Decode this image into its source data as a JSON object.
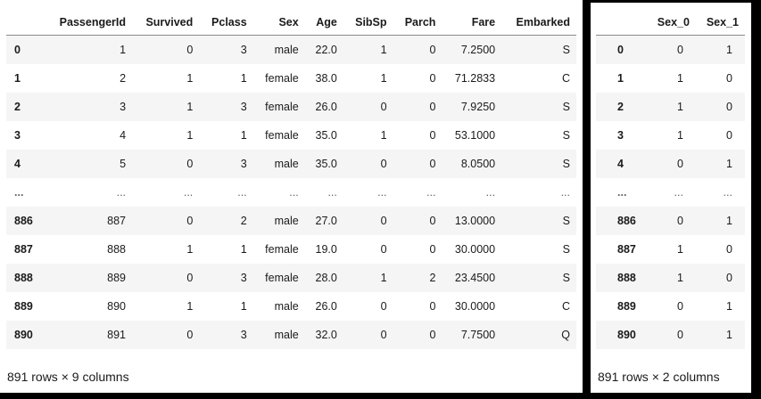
{
  "left_table": {
    "columns": [
      "",
      "PassengerId",
      "Survived",
      "Pclass",
      "Sex",
      "Age",
      "SibSp",
      "Parch",
      "Fare",
      "Embarked"
    ],
    "rows": [
      [
        "0",
        "1",
        "0",
        "3",
        "male",
        "22.0",
        "1",
        "0",
        "7.2500",
        "S"
      ],
      [
        "1",
        "2",
        "1",
        "1",
        "female",
        "38.0",
        "1",
        "0",
        "71.2833",
        "C"
      ],
      [
        "2",
        "3",
        "1",
        "3",
        "female",
        "26.0",
        "0",
        "0",
        "7.9250",
        "S"
      ],
      [
        "3",
        "4",
        "1",
        "1",
        "female",
        "35.0",
        "1",
        "0",
        "53.1000",
        "S"
      ],
      [
        "4",
        "5",
        "0",
        "3",
        "male",
        "35.0",
        "0",
        "0",
        "8.0500",
        "S"
      ],
      [
        "...",
        "...",
        "...",
        "...",
        "...",
        "...",
        "...",
        "...",
        "...",
        "..."
      ],
      [
        "886",
        "887",
        "0",
        "2",
        "male",
        "27.0",
        "0",
        "0",
        "13.0000",
        "S"
      ],
      [
        "887",
        "888",
        "1",
        "1",
        "female",
        "19.0",
        "0",
        "0",
        "30.0000",
        "S"
      ],
      [
        "888",
        "889",
        "0",
        "3",
        "female",
        "28.0",
        "1",
        "2",
        "23.4500",
        "S"
      ],
      [
        "889",
        "890",
        "1",
        "1",
        "male",
        "26.0",
        "0",
        "0",
        "30.0000",
        "C"
      ],
      [
        "890",
        "891",
        "0",
        "3",
        "male",
        "32.0",
        "0",
        "0",
        "7.7500",
        "Q"
      ]
    ],
    "caption": "891 rows × 9 columns"
  },
  "right_table": {
    "columns": [
      "",
      "Sex_0",
      "Sex_1"
    ],
    "rows": [
      [
        "0",
        "0",
        "1"
      ],
      [
        "1",
        "1",
        "0"
      ],
      [
        "2",
        "1",
        "0"
      ],
      [
        "3",
        "1",
        "0"
      ],
      [
        "4",
        "0",
        "1"
      ],
      [
        "...",
        "...",
        "..."
      ],
      [
        "886",
        "0",
        "1"
      ],
      [
        "887",
        "1",
        "0"
      ],
      [
        "888",
        "1",
        "0"
      ],
      [
        "889",
        "0",
        "1"
      ],
      [
        "890",
        "0",
        "1"
      ]
    ],
    "caption": "891 rows × 2 columns"
  }
}
